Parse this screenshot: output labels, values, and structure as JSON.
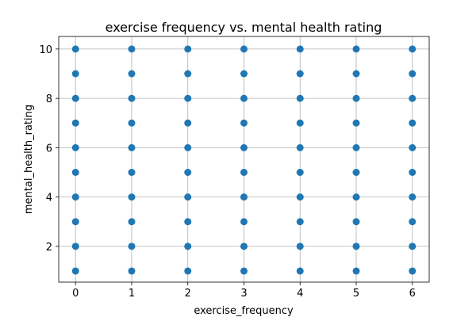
{
  "chart_data": {
    "type": "scatter",
    "title": "exercise frequency vs. mental health rating",
    "x_label": "exercise_frequency",
    "y_label": "mental_health_rating",
    "x": [
      0,
      1,
      2,
      3,
      4,
      5,
      6,
      0,
      1,
      2,
      3,
      4,
      5,
      6,
      0,
      1,
      2,
      3,
      4,
      5,
      6,
      0,
      1,
      2,
      3,
      4,
      5,
      6,
      0,
      1,
      2,
      3,
      4,
      5,
      6,
      0,
      1,
      2,
      3,
      4,
      5,
      6,
      0,
      1,
      2,
      3,
      4,
      5,
      6,
      0,
      1,
      2,
      3,
      4,
      5,
      6,
      0,
      1,
      2,
      3,
      4,
      5,
      6,
      0,
      1,
      2,
      3,
      4,
      5,
      6
    ],
    "values": [
      1,
      1,
      1,
      1,
      1,
      1,
      1,
      2,
      2,
      2,
      2,
      2,
      2,
      2,
      3,
      3,
      3,
      3,
      3,
      3,
      3,
      4,
      4,
      4,
      4,
      4,
      4,
      4,
      5,
      5,
      5,
      5,
      5,
      5,
      5,
      6,
      6,
      6,
      6,
      6,
      6,
      6,
      7,
      7,
      7,
      7,
      7,
      7,
      7,
      8,
      8,
      8,
      8,
      8,
      8,
      8,
      9,
      9,
      9,
      9,
      9,
      9,
      9,
      10,
      10,
      10,
      10,
      10,
      10,
      10
    ],
    "color": "#1f77b4",
    "xlim": [
      -0.3,
      6.3
    ],
    "xticks": [
      0,
      1,
      2,
      3,
      4,
      5,
      6
    ],
    "ylim": [
      0.55,
      10.51
    ],
    "yticks": [
      2,
      4,
      6,
      8,
      10
    ],
    "grid": true
  }
}
